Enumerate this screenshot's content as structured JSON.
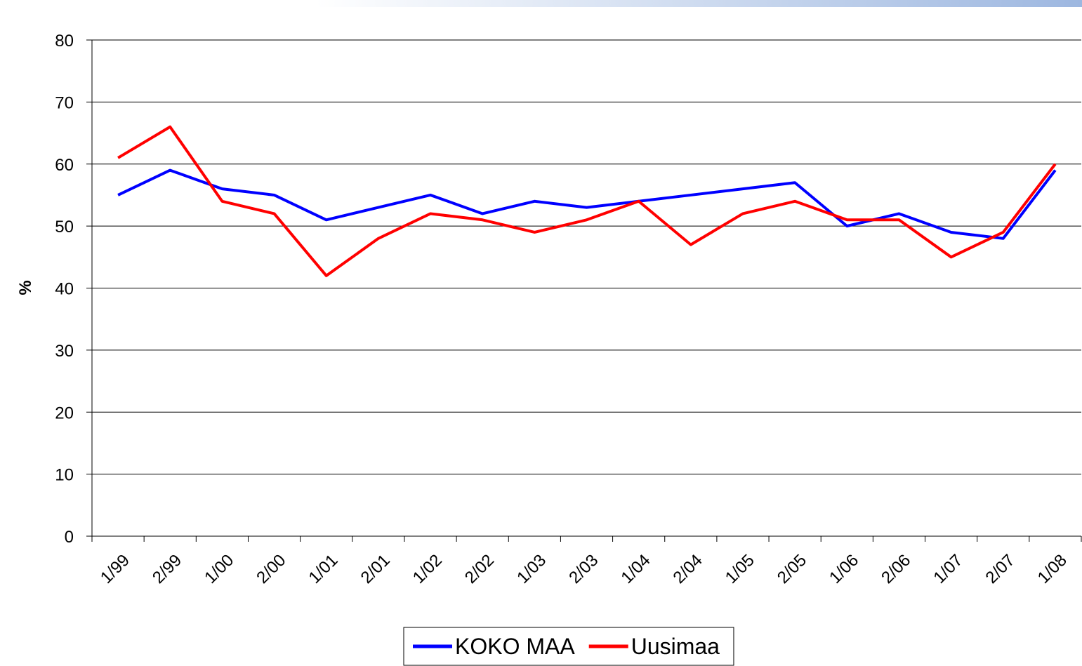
{
  "chart_data": {
    "type": "line",
    "y_label": "%",
    "categories": [
      "1/99",
      "2/99",
      "1/00",
      "2/00",
      "1/01",
      "2/01",
      "1/02",
      "2/02",
      "1/03",
      "2/03",
      "1/04",
      "2/04",
      "1/05",
      "2/05",
      "1/06",
      "2/06",
      "1/07",
      "2/07",
      "1/08"
    ],
    "series": [
      {
        "name": "KOKO MAA",
        "color": "#0000ff",
        "values": [
          55,
          59,
          56,
          55,
          51,
          53,
          55,
          52,
          54,
          53,
          54,
          55,
          56,
          57,
          50,
          52,
          49,
          48,
          59
        ]
      },
      {
        "name": "Uusimaa",
        "color": "#ff0000",
        "values": [
          61,
          66,
          54,
          52,
          42,
          48,
          52,
          51,
          49,
          51,
          54,
          47,
          52,
          54,
          51,
          51,
          45,
          49,
          60
        ]
      }
    ],
    "ylim": [
      0,
      80
    ],
    "yticks": [
      0,
      10,
      20,
      30,
      40,
      50,
      60,
      70,
      80
    ],
    "grid": true,
    "legend": "bottom"
  }
}
